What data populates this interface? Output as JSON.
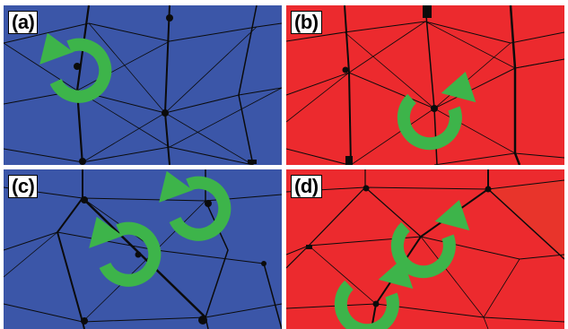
{
  "colors": {
    "blue": "#3b56a8",
    "red": "#ec2a2e",
    "arrow": "#3db44a",
    "crease": "#0b0b0b"
  },
  "panels": [
    {
      "label": "(a)",
      "color": "blue",
      "arrows": [
        "counterclockwise"
      ]
    },
    {
      "label": "(b)",
      "color": "red",
      "arrows": [
        "clockwise"
      ]
    },
    {
      "label": "(c)",
      "color": "blue",
      "arrows": [
        "counterclockwise",
        "counterclockwise"
      ]
    },
    {
      "label": "(d)",
      "color": "red",
      "arrows": [
        "clockwise",
        "clockwise"
      ]
    }
  ]
}
